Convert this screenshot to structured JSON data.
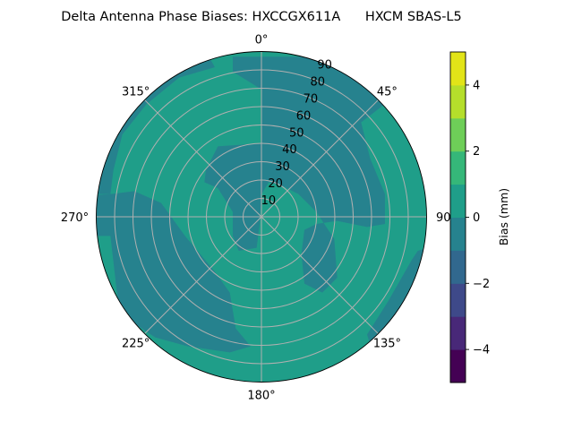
{
  "chart_data": {
    "type": "polar-contour",
    "title": "Delta Antenna Phase Biases: HXCCGX611A      HXCM SBAS-L5",
    "theta_ticks": [
      "0°",
      "45°",
      "90°",
      "135°",
      "180°",
      "225°",
      "270°",
      "315°"
    ],
    "theta_direction": "clockwise",
    "theta_zero": "top",
    "r_ticks": [
      "10",
      "20",
      "30",
      "40",
      "50",
      "60",
      "70",
      "80",
      "90"
    ],
    "rlim": [
      0,
      90
    ],
    "grid": true,
    "colorbar": {
      "label": "Bias (mm)",
      "levels": [
        -5,
        -4,
        -3,
        -2,
        -1,
        0,
        1,
        2,
        3,
        4,
        5
      ],
      "ticks": [
        "−4",
        "−2",
        "0",
        "2",
        "4"
      ],
      "tick_values": [
        -4,
        -2,
        0,
        2,
        4
      ],
      "colormap": "viridis",
      "colors": [
        "#440154",
        "#482878",
        "#3e4989",
        "#31688e",
        "#26828e",
        "#1f9e89",
        "#35b779",
        "#6ece58",
        "#b5de2b",
        "#e2e418"
      ]
    },
    "regions_present": [
      {
        "range": [
          -1,
          0
        ],
        "color": "#26828e"
      },
      {
        "range": [
          0,
          1
        ],
        "color": "#1f9e89"
      }
    ]
  }
}
